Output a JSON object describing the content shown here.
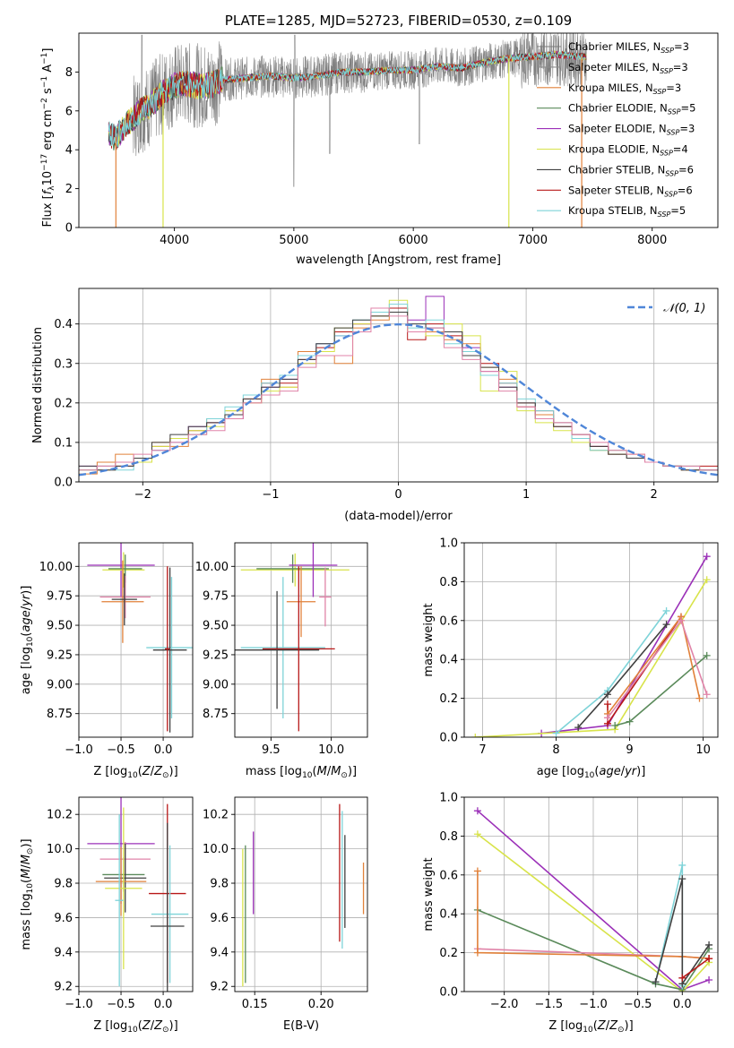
{
  "colors": {
    "chabrier_miles": "#7b7b7b",
    "salpeter_miles": "#8c8c8c",
    "kroupa_miles": "#e1813a",
    "chabrier_elodie": "#5a8a5a",
    "salpeter_elodie": "#9b30b8",
    "kroupa_elodie": "#d8e34a",
    "chabrier_stelib": "#404040",
    "salpeter_stelib": "#b81818",
    "kroupa_stelib": "#7ed3d8",
    "pink": "#e083a8",
    "gauss": "#4f86d8"
  },
  "chart_data": [
    {
      "id": "spectrum",
      "type": "line",
      "title": "PLATE=1285, MJD=52723, FIBERID=0530, z=0.109",
      "xlabel": "wavelength [Angstrom, rest frame]",
      "ylabel": "Flux [f_λ10^-17 erg cm^-2 s^-1 A^-1]",
      "xlim": [
        3200,
        8550
      ],
      "ylim": [
        0,
        10
      ],
      "xticks": [
        "4000",
        "5000",
        "6000",
        "7000",
        "8000"
      ],
      "yticks": [
        "0",
        "2",
        "4",
        "6",
        "8"
      ],
      "grid": false,
      "legend_position": "top-right",
      "legend": [
        "Chabrier MILES, N_SSP=3",
        "Salpeter MILES, N_SSP=3",
        "Kroupa MILES, N_SSP=3",
        "Chabrier ELODIE, N_SSP=5",
        "Salpeter ELODIE, N_SSP=3",
        "Kroupa ELODIE, N_SSP=4",
        "Chabrier STELIB, N_SSP=6",
        "Salpeter STELIB, N_SSP=6",
        "Kroupa STELIB, N_SSP=5"
      ],
      "data_wavelength_range": [
        3450,
        7450
      ],
      "model_curve": {
        "x": [
          3450,
          3500,
          3600,
          3700,
          3800,
          3900,
          4000,
          4100,
          4200,
          4300,
          4400,
          4600,
          4800,
          5000,
          5200,
          5400,
          5600,
          5800,
          6000,
          6200,
          6400,
          6600,
          6800,
          7000,
          7200,
          7400,
          7600,
          7800,
          8000,
          8200,
          8400
        ],
        "y": [
          4.8,
          4.6,
          5.3,
          5.9,
          6.3,
          6.9,
          7.3,
          7.4,
          7.3,
          7.3,
          7.6,
          7.7,
          7.8,
          7.7,
          7.8,
          8.0,
          8.0,
          8.1,
          8.1,
          8.3,
          8.2,
          8.5,
          8.7,
          8.8,
          8.9,
          8.8,
          8.7,
          8.7,
          8.6,
          8.6,
          8.5
        ]
      }
    },
    {
      "id": "residuals",
      "type": "line",
      "xlabel": "(data-model)/error",
      "ylabel": "Normed distribution",
      "xlim": [
        -2.5,
        2.5
      ],
      "ylim": [
        0,
        0.49
      ],
      "xticks": [
        "−2",
        "−1",
        "0",
        "1",
        "2"
      ],
      "yticks": [
        "0.0",
        "0.1",
        "0.2",
        "0.3",
        "0.4"
      ],
      "grid": true,
      "legend_position": "top-right",
      "legend": [
        "𝒩(0, 1)"
      ],
      "gaussian": {
        "mean": 0,
        "sigma": 1
      },
      "histograms": [
        {
          "color_key": "salpeter_elodie",
          "values": [
            0.04,
            0.03,
            0.05,
            0.06,
            0.08,
            0.1,
            0.14,
            0.15,
            0.16,
            0.2,
            0.24,
            0.26,
            0.3,
            0.35,
            0.37,
            0.4,
            0.43,
            0.44,
            0.41,
            0.47,
            0.38,
            0.34,
            0.28,
            0.24,
            0.2,
            0.17,
            0.14,
            0.11,
            0.09,
            0.07,
            0.06,
            0.05,
            0.04,
            0.03,
            0.03
          ]
        },
        {
          "color_key": "salpeter_stelib",
          "values": [
            0.03,
            0.04,
            0.04,
            0.06,
            0.09,
            0.11,
            0.13,
            0.15,
            0.17,
            0.21,
            0.25,
            0.25,
            0.31,
            0.34,
            0.38,
            0.4,
            0.42,
            0.44,
            0.36,
            0.4,
            0.37,
            0.33,
            0.3,
            0.25,
            0.19,
            0.18,
            0.15,
            0.12,
            0.09,
            0.07,
            0.06,
            0.05,
            0.04,
            0.03,
            0.04
          ]
        },
        {
          "color_key": "kroupa_miles",
          "values": [
            0.02,
            0.05,
            0.07,
            0.05,
            0.1,
            0.09,
            0.12,
            0.16,
            0.18,
            0.2,
            0.26,
            0.24,
            0.33,
            0.32,
            0.3,
            0.39,
            0.41,
            0.43,
            0.38,
            0.38,
            0.36,
            0.35,
            0.29,
            0.26,
            0.2,
            0.17,
            0.14,
            0.11,
            0.08,
            0.08,
            0.07,
            0.05,
            0.04,
            0.04,
            0.03
          ]
        },
        {
          "color_key": "kroupa_elodie",
          "values": [
            0.03,
            0.03,
            0.05,
            0.05,
            0.09,
            0.11,
            0.13,
            0.14,
            0.18,
            0.2,
            0.23,
            0.24,
            0.3,
            0.33,
            0.39,
            0.4,
            0.42,
            0.46,
            0.38,
            0.37,
            0.4,
            0.37,
            0.23,
            0.28,
            0.18,
            0.15,
            0.13,
            0.1,
            0.08,
            0.07,
            0.06,
            0.05,
            0.04,
            0.03,
            0.03
          ]
        },
        {
          "color_key": "kroupa_stelib",
          "values": [
            0.03,
            0.04,
            0.03,
            0.06,
            0.08,
            0.1,
            0.12,
            0.16,
            0.19,
            0.22,
            0.25,
            0.27,
            0.32,
            0.35,
            0.37,
            0.41,
            0.43,
            0.45,
            0.39,
            0.41,
            0.35,
            0.33,
            0.27,
            0.25,
            0.21,
            0.18,
            0.15,
            0.11,
            0.08,
            0.08,
            0.06,
            0.05,
            0.04,
            0.04,
            0.03
          ]
        },
        {
          "color_key": "chabrier_stelib",
          "values": [
            0.04,
            0.03,
            0.04,
            0.06,
            0.1,
            0.12,
            0.14,
            0.15,
            0.17,
            0.21,
            0.24,
            0.26,
            0.31,
            0.35,
            0.39,
            0.41,
            0.42,
            0.43,
            0.4,
            0.39,
            0.38,
            0.32,
            0.29,
            0.24,
            0.2,
            0.16,
            0.14,
            0.12,
            0.09,
            0.07,
            0.06,
            0.05,
            0.04,
            0.03,
            0.03
          ]
        },
        {
          "color_key": "pink",
          "values": [
            0.03,
            0.04,
            0.05,
            0.07,
            0.08,
            0.1,
            0.12,
            0.13,
            0.16,
            0.2,
            0.22,
            0.23,
            0.29,
            0.32,
            0.32,
            0.38,
            0.44,
            0.42,
            0.38,
            0.39,
            0.34,
            0.31,
            0.28,
            0.23,
            0.19,
            0.16,
            0.15,
            0.12,
            0.1,
            0.08,
            0.07,
            0.05,
            0.04,
            0.04,
            0.03
          ]
        }
      ]
    },
    {
      "id": "age-vs-Z",
      "type": "scatter",
      "xlabel": "Z [log10(Z/Z⊙)]",
      "ylabel": "age  [log10(age/yr)]",
      "xlim": [
        -1.0,
        0.35
      ],
      "ylim": [
        8.55,
        10.2
      ],
      "xticks": [
        "−1.0",
        "−0.5",
        "0.0"
      ],
      "yticks": [
        "8.75",
        "9.00",
        "9.25",
        "9.50",
        "9.75",
        "10.00",
        "10.25"
      ],
      "grid": true,
      "points": [
        {
          "color_key": "salpeter_elodie",
          "x": -0.5,
          "y": 10.01,
          "xerr": 0.4,
          "yerr": 0.27
        },
        {
          "color_key": "kroupa_elodie",
          "x": -0.47,
          "y": 9.97,
          "xerr": 0.25,
          "yerr": 0.15
        },
        {
          "color_key": "chabrier_elodie",
          "x": -0.45,
          "y": 9.98,
          "xerr": 0.2,
          "yerr": 0.12
        },
        {
          "color_key": "pink",
          "x": -0.45,
          "y": 9.74,
          "xerr": 0.3,
          "yerr": 0.18
        },
        {
          "color_key": "kroupa_miles",
          "x": -0.48,
          "y": 9.7,
          "xerr": 0.25,
          "yerr": 0.35
        },
        {
          "color_key": "chabrier_stelib",
          "x": -0.46,
          "y": 9.72,
          "xerr": 0.15,
          "yerr": 0.22
        },
        {
          "color_key": "kroupa_stelib",
          "x": 0.1,
          "y": 9.31,
          "xerr": 0.3,
          "yerr": 0.6
        },
        {
          "color_key": "chabrier_stelib",
          "x": 0.08,
          "y": 9.29,
          "xerr": 0.2,
          "yerr": 0.7
        },
        {
          "color_key": "salpeter_stelib",
          "x": 0.05,
          "y": 9.3,
          "xerr": 0.03,
          "yerr": 0.7
        }
      ]
    },
    {
      "id": "age-vs-mass",
      "type": "scatter",
      "xlabel": "mass [log10(M/M⊙)]",
      "xlim": [
        9.2,
        10.3
      ],
      "ylim": [
        8.55,
        10.2
      ],
      "xticks": [
        "9.5",
        "10.0"
      ],
      "yticks": [
        "8.75",
        "9.00",
        "9.25",
        "9.50",
        "9.75",
        "10.00",
        "10.25"
      ],
      "grid": true,
      "points": [
        {
          "color_key": "kroupa_elodie",
          "x": 9.7,
          "y": 9.97,
          "xerr": 0.45,
          "yerr": 0.14
        },
        {
          "color_key": "chabrier_elodie",
          "x": 9.68,
          "y": 9.98,
          "xerr": 0.3,
          "yerr": 0.12
        },
        {
          "color_key": "salpeter_elodie",
          "x": 9.85,
          "y": 10.01,
          "xerr": 0.2,
          "yerr": 0.27
        },
        {
          "color_key": "pink",
          "x": 9.95,
          "y": 9.74,
          "xerr": 0.05,
          "yerr": 0.25
        },
        {
          "color_key": "kroupa_miles",
          "x": 9.75,
          "y": 9.7,
          "xerr": 0.12,
          "yerr": 0.3
        },
        {
          "color_key": "kroupa_stelib",
          "x": 9.6,
          "y": 9.31,
          "xerr": 0.35,
          "yerr": 0.6
        },
        {
          "color_key": "chabrier_stelib",
          "x": 9.55,
          "y": 9.29,
          "xerr": 0.35,
          "yerr": 0.5
        },
        {
          "color_key": "salpeter_stelib",
          "x": 9.73,
          "y": 9.3,
          "xerr": 0.3,
          "yerr": 0.7
        }
      ]
    },
    {
      "id": "massweight-vs-age",
      "type": "line",
      "xlabel": "age  [log10(age/yr)]",
      "ylabel": "mass weight",
      "xlim": [
        6.75,
        10.2
      ],
      "ylim": [
        0,
        1.0
      ],
      "xticks": [
        "7",
        "8",
        "9",
        "10"
      ],
      "yticks": [
        "0.0",
        "0.2",
        "0.4",
        "0.6",
        "0.8",
        "1.0"
      ],
      "grid": true,
      "series": [
        {
          "color_key": "salpeter_elodie",
          "x": [
            7.8,
            8.7,
            10.05
          ],
          "y": [
            0.02,
            0.06,
            0.93
          ]
        },
        {
          "color_key": "kroupa_elodie",
          "x": [
            6.9,
            8.8,
            10.05
          ],
          "y": [
            0.0,
            0.04,
            0.81
          ]
        },
        {
          "color_key": "chabrier_elodie",
          "x": [
            8.8,
            9.0,
            10.05
          ],
          "y": [
            0.06,
            0.08,
            0.42
          ]
        },
        {
          "color_key": "kroupa_stelib",
          "x": [
            8.0,
            8.7,
            9.5
          ],
          "y": [
            0.02,
            0.24,
            0.65
          ]
        },
        {
          "color_key": "chabrier_stelib",
          "x": [
            8.3,
            8.7,
            9.5
          ],
          "y": [
            0.05,
            0.22,
            0.58
          ]
        },
        {
          "color_key": "salpeter_stelib",
          "x": [
            8.7,
            8.7,
            9.7
          ],
          "y": [
            0.17,
            0.07,
            0.62
          ]
        },
        {
          "color_key": "kroupa_miles",
          "x": [
            8.7,
            9.7,
            9.95
          ],
          "y": [
            0.12,
            0.62,
            0.2
          ]
        },
        {
          "color_key": "pink",
          "x": [
            8.7,
            9.7,
            10.05
          ],
          "y": [
            0.1,
            0.6,
            0.22
          ]
        }
      ]
    },
    {
      "id": "mass-vs-Z",
      "type": "scatter",
      "xlabel": "Z [log10(Z/Z⊙)]",
      "ylabel": "mass [log10(M/M⊙)]",
      "xlim": [
        -1.0,
        0.35
      ],
      "ylim": [
        9.17,
        10.3
      ],
      "xticks": [
        "−1.0",
        "−0.5",
        "0.0"
      ],
      "yticks": [
        "9.2",
        "9.4",
        "9.6",
        "9.8",
        "10.0",
        "10.2"
      ],
      "grid": true,
      "points": [
        {
          "color_key": "salpeter_elodie",
          "x": -0.5,
          "y": 10.03,
          "xerr": 0.4,
          "yerr": 0.35
        },
        {
          "color_key": "pink",
          "x": -0.45,
          "y": 9.94,
          "xerr": 0.3,
          "yerr": 0.1
        },
        {
          "color_key": "chabrier_elodie",
          "x": -0.47,
          "y": 9.85,
          "xerr": 0.25,
          "yerr": 0.1
        },
        {
          "color_key": "chabrier_stelib",
          "x": -0.45,
          "y": 9.83,
          "xerr": 0.25,
          "yerr": 0.2
        },
        {
          "color_key": "kroupa_miles",
          "x": -0.5,
          "y": 9.81,
          "xerr": 0.3,
          "yerr": 0.2
        },
        {
          "color_key": "kroupa_elodie",
          "x": -0.47,
          "y": 9.77,
          "xerr": 0.22,
          "yerr": 0.47
        },
        {
          "color_key": "kroupa_stelib",
          "x": -0.52,
          "y": 9.7,
          "xerr": 0.05,
          "yerr": 0.5
        },
        {
          "color_key": "salpeter_stelib",
          "x": 0.05,
          "y": 9.74,
          "xerr": 0.22,
          "yerr": 0.52
        },
        {
          "color_key": "kroupa_stelib",
          "x": 0.08,
          "y": 9.62,
          "xerr": 0.22,
          "yerr": 0.4
        },
        {
          "color_key": "chabrier_stelib",
          "x": 0.05,
          "y": 9.55,
          "xerr": 0.2,
          "yerr": 0.6
        }
      ]
    },
    {
      "id": "mass-vs-ebv",
      "type": "scatter",
      "xlabel": "E(B-V)",
      "xlim": [
        0.135,
        0.235
      ],
      "ylim": [
        9.17,
        10.3
      ],
      "xticks": [
        "0.15",
        "0.20"
      ],
      "yticks": [
        "9.2",
        "9.4",
        "9.6",
        "9.8",
        "10.0",
        "10.2"
      ],
      "grid": true,
      "points": [
        {
          "color_key": "kroupa_elodie",
          "x": 0.141,
          "y": 9.6,
          "yerr": 0.4
        },
        {
          "color_key": "chabrier_elodie",
          "x": 0.143,
          "y": 9.62,
          "yerr": 0.4
        },
        {
          "color_key": "salpeter_elodie",
          "x": 0.149,
          "y": 9.86,
          "yerr": 0.24
        },
        {
          "color_key": "salpeter_stelib",
          "x": 0.214,
          "y": 9.86,
          "yerr": 0.4
        },
        {
          "color_key": "kroupa_stelib",
          "x": 0.216,
          "y": 9.82,
          "yerr": 0.4
        },
        {
          "color_key": "chabrier_stelib",
          "x": 0.218,
          "y": 9.81,
          "yerr": 0.27
        },
        {
          "color_key": "kroupa_miles",
          "x": 0.232,
          "y": 9.77,
          "yerr": 0.15
        }
      ]
    },
    {
      "id": "massweight-vs-Z",
      "type": "line",
      "xlabel": "Z [log10(Z/Z⊙)]",
      "ylabel": "mass weight",
      "xlim": [
        -2.45,
        0.4
      ],
      "ylim": [
        0,
        1.0
      ],
      "xticks": [
        "−2.0",
        "−1.5",
        "−1.0",
        "−0.5",
        "0.0"
      ],
      "yticks": [
        "0.0",
        "0.2",
        "0.4",
        "0.6",
        "0.8",
        "1.0"
      ],
      "grid": true,
      "series": [
        {
          "color_key": "salpeter_elodie",
          "x": [
            -2.3,
            0.0,
            0.3
          ],
          "y": [
            0.93,
            0.01,
            0.06
          ]
        },
        {
          "color_key": "kroupa_elodie",
          "x": [
            -2.3,
            0.0,
            0.3
          ],
          "y": [
            0.81,
            0.0,
            0.15
          ]
        },
        {
          "color_key": "chabrier_elodie",
          "x": [
            -2.3,
            -0.3,
            0.0,
            0.3
          ],
          "y": [
            0.42,
            0.04,
            0.01,
            0.22
          ]
        },
        {
          "color_key": "pink",
          "x": [
            -2.3,
            0.0,
            0.3
          ],
          "y": [
            0.22,
            0.18,
            0.17
          ]
        },
        {
          "color_key": "kroupa_miles",
          "x": [
            -2.3,
            -2.3,
            0.0,
            0.3
          ],
          "y": [
            0.62,
            0.2,
            0.18,
            0.17
          ]
        },
        {
          "color_key": "kroupa_stelib",
          "x": [
            -0.3,
            0.0,
            0.0
          ],
          "y": [
            0.05,
            0.65,
            0.03
          ]
        },
        {
          "color_key": "chabrier_stelib",
          "x": [
            -0.3,
            0.0,
            0.0,
            0.3
          ],
          "y": [
            0.05,
            0.58,
            0.04,
            0.24
          ]
        },
        {
          "color_key": "salpeter_stelib",
          "x": [
            0.0,
            0.3,
            0.3
          ],
          "y": [
            0.07,
            0.17,
            0.17
          ]
        }
      ]
    }
  ]
}
